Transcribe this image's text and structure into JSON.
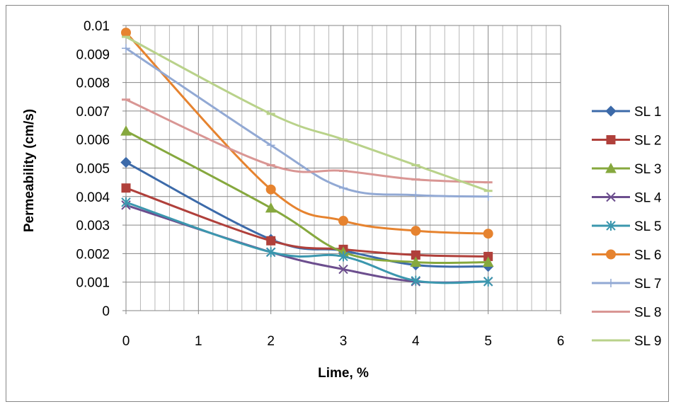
{
  "chart_data": {
    "type": "line",
    "xlabel": "Lime, %",
    "ylabel": "Permeability (cm/s)",
    "xlim": [
      0,
      6
    ],
    "ylim": [
      0,
      0.01
    ],
    "x_ticks": [
      0,
      1,
      2,
      3,
      4,
      5,
      6
    ],
    "y_ticks": [
      "0",
      "0.001",
      "0.002",
      "0.003",
      "0.004",
      "0.005",
      "0.006",
      "0.007",
      "0.008",
      "0.009",
      "0.01"
    ],
    "grid": true,
    "legend_position": "right",
    "x": [
      0,
      2,
      3,
      4,
      5
    ],
    "series": [
      {
        "name": "SL 1",
        "color": "#3c6aa9",
        "marker": "diamond",
        "values": [
          0.0052,
          0.0025,
          0.0021,
          0.0016,
          0.00155
        ]
      },
      {
        "name": "SL 2",
        "color": "#b0403b",
        "marker": "square",
        "values": [
          0.0043,
          0.00245,
          0.00215,
          0.00195,
          0.0019
        ]
      },
      {
        "name": "SL 3",
        "color": "#86a83e",
        "marker": "triangle",
        "values": [
          0.0063,
          0.0036,
          0.00205,
          0.0017,
          0.0017
        ]
      },
      {
        "name": "SL 4",
        "color": "#6c4e8e",
        "marker": "x",
        "values": [
          0.0037,
          0.00205,
          0.00145,
          0.00102,
          0.00102
        ]
      },
      {
        "name": "SL 5",
        "color": "#3b97ae",
        "marker": "star",
        "values": [
          0.0038,
          0.00205,
          0.0019,
          0.00105,
          0.00102
        ]
      },
      {
        "name": "SL 6",
        "color": "#e6832f",
        "marker": "circle",
        "values": [
          0.00975,
          0.00425,
          0.00315,
          0.0028,
          0.0027
        ]
      },
      {
        "name": "SL 7",
        "color": "#92a9d4",
        "marker": "plus",
        "values": [
          0.0092,
          0.0058,
          0.0043,
          0.00405,
          0.004
        ]
      },
      {
        "name": "SL 8",
        "color": "#d99694",
        "marker": "dash",
        "values": [
          0.0074,
          0.0051,
          0.0049,
          0.0046,
          0.0045
        ]
      },
      {
        "name": "SL 9",
        "color": "#b9d28a",
        "marker": "dash",
        "values": [
          0.0096,
          0.0069,
          0.006,
          0.0051,
          0.0042
        ]
      }
    ]
  }
}
